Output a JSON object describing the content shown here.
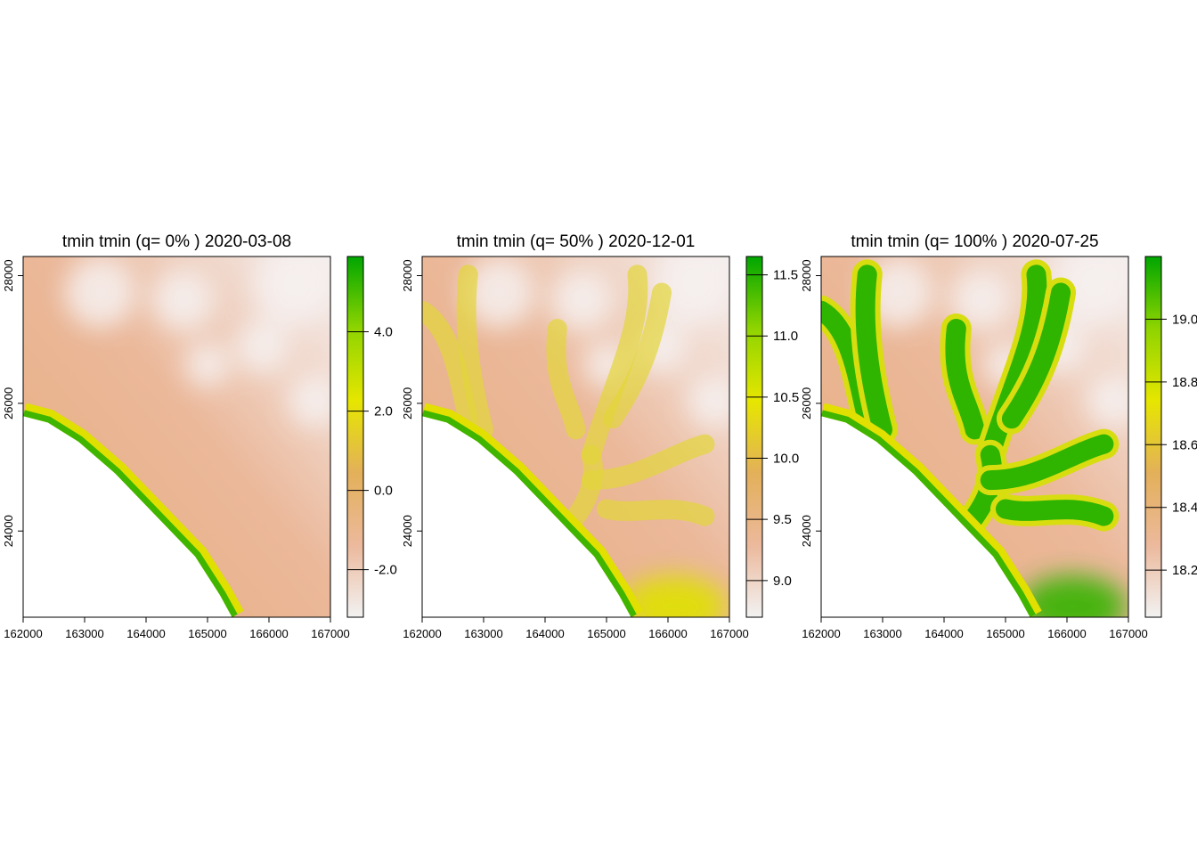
{
  "chart_data": [
    {
      "type": "heatmap",
      "title": "tmin tmin (q= 0% ) 2020-03-08",
      "xlim": [
        162000,
        167000
      ],
      "ylim": [
        22650,
        28300
      ],
      "x_ticks": [
        "162000",
        "163000",
        "164000",
        "165000",
        "166000",
        "167000"
      ],
      "y_ticks": [
        "24000",
        "26000",
        "28000"
      ],
      "legend": {
        "range": [
          -3.2,
          5.9
        ],
        "ticks": [
          "-2.0",
          "0.0",
          "2.0",
          "4.0"
        ]
      },
      "valleys_visible": false
    },
    {
      "type": "heatmap",
      "title": "tmin tmin (q= 50% ) 2020-12-01",
      "xlim": [
        162000,
        167000
      ],
      "ylim": [
        22650,
        28300
      ],
      "x_ticks": [
        "162000",
        "163000",
        "164000",
        "165000",
        "166000",
        "167000"
      ],
      "y_ticks": [
        "24000",
        "26000",
        "28000"
      ],
      "legend": {
        "range": [
          8.7,
          11.65
        ],
        "ticks": [
          "9.0",
          "9.5",
          "10.0",
          "10.5",
          "11.0",
          "11.5"
        ]
      },
      "valleys_visible": true
    },
    {
      "type": "heatmap",
      "title": "tmin tmin (q= 100% ) 2020-07-25",
      "xlim": [
        162000,
        167000
      ],
      "ylim": [
        22650,
        28300
      ],
      "x_ticks": [
        "162000",
        "163000",
        "164000",
        "165000",
        "166000",
        "167000"
      ],
      "y_ticks": [
        "24000",
        "26000",
        "28000"
      ],
      "legend": {
        "range": [
          18.05,
          19.2
        ],
        "ticks": [
          "18.2",
          "18.4",
          "18.6",
          "18.8",
          "19.0"
        ]
      },
      "valleys_visible": true
    }
  ],
  "palette": [
    "#f2f2f2",
    "#ecb99c",
    "#e3b05a",
    "#e6e600",
    "#8fd400",
    "#00a600"
  ],
  "coast": [
    [
      162000,
      25800
    ],
    [
      162400,
      25700
    ],
    [
      162900,
      25400
    ],
    [
      163500,
      24900
    ],
    [
      164200,
      24200
    ],
    [
      164800,
      23600
    ],
    [
      165200,
      23000
    ],
    [
      165400,
      22650
    ]
  ]
}
